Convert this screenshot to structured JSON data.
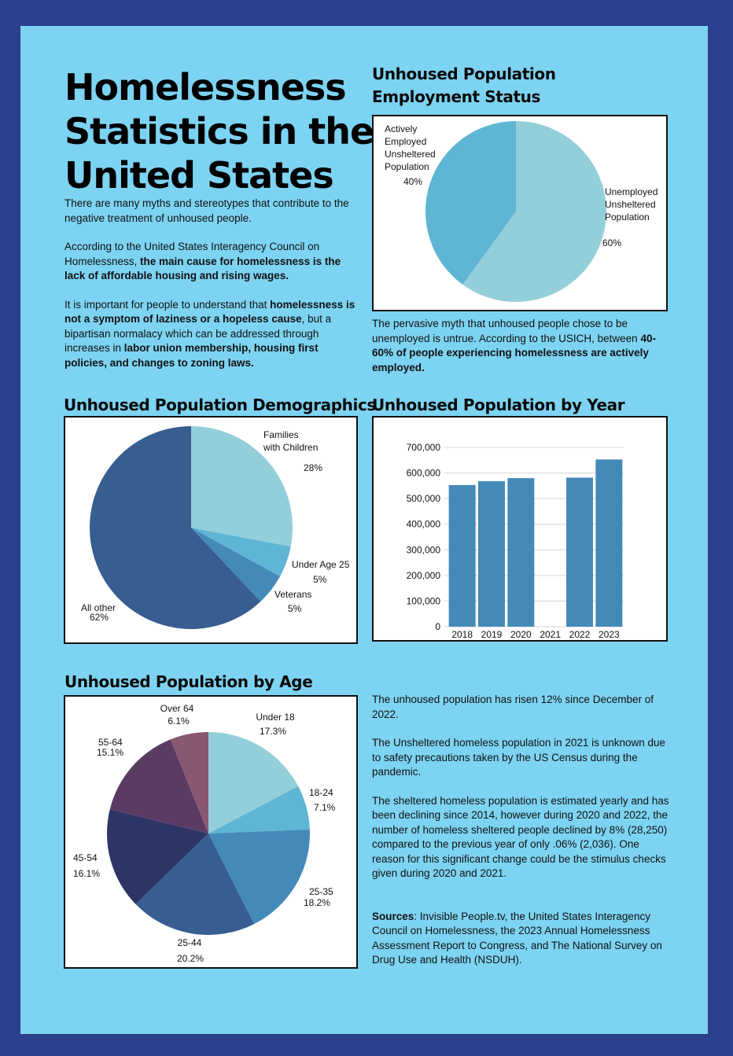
{
  "title_lines": [
    "Homelessness",
    "Statistics in the",
    "United States"
  ],
  "intro": {
    "p1": "There are many myths and stereotypes that contribute to the negative treatment of unhoused people.",
    "p2_a": "According to the United States Interagency Council on Homelessness, ",
    "p2_b": "the main cause for homelessness is the lack of affordable housing and rising wages.",
    "p3_a": "It is important for people to understand that ",
    "p3_b": "homelessness is not a symptom of laziness or a hopeless cause",
    "p3_c": ", but a bipartisan normalacy which can be addressed through increases in ",
    "p3_d": "labor union membership, housing first policies, and changes to zoning laws."
  },
  "employment": {
    "title_lines": [
      "Unhoused Population",
      "Employment Status"
    ],
    "caption_a": "The pervasive myth that unhoused people chose to be unemployed is untrue. According to the USICH, between ",
    "caption_b": "40-60% of people experiencing homelessness are actively employed."
  },
  "demographics": {
    "title": "Unhoused Population Demographics"
  },
  "by_year": {
    "title": "Unhoused Population by Year"
  },
  "by_age": {
    "title": "Unhoused Population by Age"
  },
  "notes": {
    "p1": "The unhoused population has risen 12% since December of 2022.",
    "p2": "The Unsheltered homeless population in 2021 is unknown due to safety precautions taken by the US Census during the pandemic.",
    "p3": "The sheltered homeless population is estimated yearly and has been declining since 2014, however during 2020 and 2022, the number of homeless sheltered people declined by 8% (28,250) compared to the previous year of only .06% (2,036). One reason for this significant change could be the stimulus checks given during 2020 and 2021.",
    "sources_label": "Sources",
    "sources_text": ": Invisible People.tv, the United States Interagency Council on Homelessness, the 2023 Annual Homelessness Assessment Report to Congress,  and The National Survey on Drug Use and Health (NSDUH)."
  },
  "chart_data": [
    {
      "type": "pie",
      "slices": [
        {
          "label": [
            "Unemployed",
            "Unsheltered",
            "Population"
          ],
          "value": 60,
          "value_label": "60%",
          "color": "#93cfda"
        },
        {
          "label": [
            "Actively",
            "Employed",
            "Unsheltered",
            "Population"
          ],
          "value": 40,
          "value_label": "40%",
          "color": "#5fb5d4"
        }
      ]
    },
    {
      "type": "pie",
      "slices": [
        {
          "label": [
            "Families",
            "with Children"
          ],
          "value": 28,
          "value_label": "28%",
          "color": "#93cfda"
        },
        {
          "label": [
            "Under Age 25"
          ],
          "value": 5,
          "value_label": "5%",
          "color": "#5fb5d4"
        },
        {
          "label": [
            "Veterans"
          ],
          "value": 5,
          "value_label": "5%",
          "color": "#448ab9"
        },
        {
          "label": [
            "All other"
          ],
          "value": 62,
          "value_label": "62%",
          "color": "#375d91"
        }
      ]
    },
    {
      "type": "bar",
      "categories": [
        "2018",
        "2019",
        "2020",
        "2021",
        "2022",
        "2023"
      ],
      "values": [
        553000,
        568000,
        580000,
        0,
        582000,
        653000
      ],
      "ylim": [
        0,
        700000
      ],
      "yticks": [
        0,
        100000,
        200000,
        300000,
        400000,
        500000,
        600000,
        700000
      ],
      "ytick_labels": [
        "0",
        "100,000",
        "200,000",
        "300,000",
        "400,000",
        "500,000",
        "600,000",
        "700,000"
      ],
      "grid": true,
      "color": "#448ab9"
    },
    {
      "type": "pie",
      "slices": [
        {
          "label": [
            "Under 18"
          ],
          "value": 17.3,
          "value_label": "17.3%",
          "color": "#93cfda"
        },
        {
          "label": [
            "18-24"
          ],
          "value": 7.1,
          "value_label": "7.1%",
          "color": "#5fb5d4"
        },
        {
          "label": [
            "25-35"
          ],
          "value": 18.2,
          "value_label": "18.2%",
          "color": "#448ab9"
        },
        {
          "label": [
            "25-44"
          ],
          "value": 20.2,
          "value_label": "20.2%",
          "color": "#375d91"
        },
        {
          "label": [
            "45-54"
          ],
          "value": 16.1,
          "value_label": "16.1%",
          "color": "#2d3466"
        },
        {
          "label": [
            "55-64"
          ],
          "value": 15.1,
          "value_label": "15.1%",
          "color": "#5a3c63"
        },
        {
          "label": [
            "Over 64"
          ],
          "value": 6.1,
          "value_label": "6.1%",
          "color": "#885771"
        }
      ]
    }
  ]
}
